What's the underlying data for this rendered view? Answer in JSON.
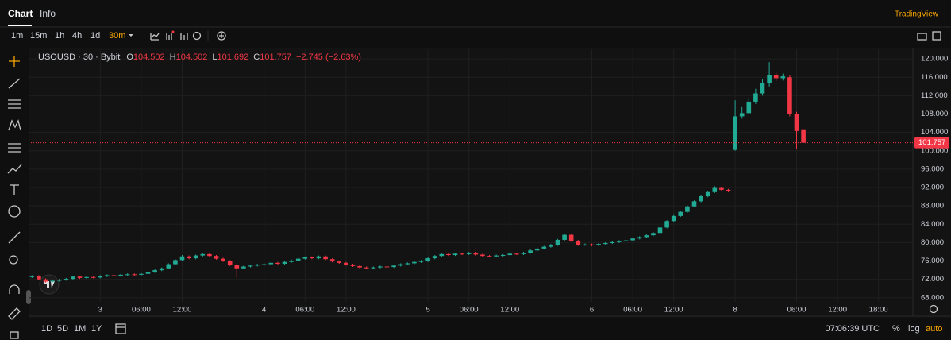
{
  "tabs": [
    "Chart",
    "Info"
  ],
  "brand": "TradingView",
  "intervals": [
    "1m",
    "15m",
    "1h",
    "4h",
    "1d",
    "30m"
  ],
  "ranges": [
    "1D",
    "5D",
    "1M",
    "1Y"
  ],
  "clock": "07:06:39 UTC",
  "scale_buttons": [
    "%",
    "log",
    "auto"
  ],
  "chart_data": {
    "type": "candlestick",
    "symbol": "USOUSD · 30 · Bybit",
    "ohlc_labels": [
      "O",
      "H",
      "L",
      "C"
    ],
    "change": "−2.745 (−2.63%)",
    "up_color": "#22ab94",
    "down_color": "#f23645",
    "grid": true,
    "ylim": [
      67.1,
      122.1
    ],
    "yticks": [
      {
        "value": 68,
        "label": "68.000"
      },
      {
        "value": 72,
        "label": "72.000"
      },
      {
        "value": 76,
        "label": "76.000"
      },
      {
        "value": 80,
        "label": "80.000"
      },
      {
        "value": 84,
        "label": "84.000"
      },
      {
        "value": 88,
        "label": "88.000"
      },
      {
        "value": 92,
        "label": "92.000"
      },
      {
        "value": 96,
        "label": "96.000"
      },
      {
        "value": 100,
        "label": "100.000"
      },
      {
        "value": 104,
        "label": "104.000"
      },
      {
        "value": 108,
        "label": "108.000"
      },
      {
        "value": 112,
        "label": "112.000"
      },
      {
        "value": 116,
        "label": "116.000"
      },
      {
        "value": 120,
        "label": "120.000"
      }
    ],
    "categories": [
      null,
      null,
      null,
      null,
      null,
      null,
      null,
      null,
      null,
      null,
      "3",
      null,
      null,
      null,
      null,
      null,
      "06:00",
      null,
      null,
      null,
      null,
      null,
      "12:00",
      null,
      null,
      null,
      null,
      null,
      null,
      null,
      null,
      null,
      null,
      null,
      "4",
      null,
      null,
      null,
      null,
      null,
      "06:00",
      null,
      null,
      null,
      null,
      null,
      "12:00",
      null,
      null,
      null,
      null,
      null,
      null,
      null,
      null,
      null,
      null,
      null,
      "5",
      null,
      null,
      null,
      null,
      null,
      "06:00",
      null,
      null,
      null,
      null,
      null,
      "12:00",
      null,
      null,
      null,
      null,
      null,
      null,
      null,
      null,
      null,
      null,
      null,
      "6",
      null,
      null,
      null,
      null,
      null,
      "06:00",
      null,
      null,
      null,
      null,
      null,
      "12:00",
      null,
      null,
      null,
      null,
      null,
      null,
      null,
      null,
      "8",
      null,
      null,
      null,
      null,
      null,
      null,
      null,
      null,
      "06:00",
      null,
      null,
      null,
      null,
      null,
      "12:00",
      null,
      null,
      null,
      null,
      null,
      "18:00",
      null,
      null,
      null
    ],
    "open": [
      72.5,
      72.7,
      72.0,
      71.5,
      71.7,
      71.9,
      72.1,
      72.6,
      72.3,
      72.5,
      72.4,
      72.7,
      72.9,
      72.8,
      73.0,
      73.1,
      73.0,
      73.2,
      73.6,
      74.0,
      74.4,
      75.3,
      76.2,
      77.0,
      76.6,
      77.2,
      77.5,
      77.1,
      76.5,
      76.0,
      75.1,
      74.4,
      74.8,
      75.0,
      75.2,
      75.3,
      75.6,
      75.4,
      75.8,
      76.1,
      76.5,
      76.8,
      76.6,
      77.0,
      76.4,
      75.9,
      75.6,
      75.2,
      74.9,
      74.6,
      74.4,
      74.6,
      74.8,
      74.7,
      75.0,
      75.3,
      75.5,
      75.8,
      76.0,
      76.6,
      77.1,
      77.5,
      77.3,
      77.6,
      77.5,
      77.8,
      77.4,
      77.1,
      77.0,
      77.2,
      77.3,
      77.6,
      77.5,
      77.8,
      78.3,
      78.7,
      79.1,
      79.5,
      80.6,
      81.7,
      80.4,
      79.5,
      79.6,
      79.4,
      79.7,
      79.9,
      80.1,
      80.3,
      80.5,
      80.9,
      81.2,
      81.6,
      82.1,
      83.3,
      84.7,
      85.8,
      86.7,
      87.9,
      89.0,
      90.1,
      91.0,
      91.9,
      91.5,
      100.2,
      107.5,
      108.2,
      110.7,
      112.5,
      114.7,
      116.4,
      115.8,
      116.0,
      108.0,
      104.502,
      null,
      null,
      null,
      null,
      null,
      null,
      null,
      null,
      null,
      null,
      null,
      null,
      null,
      null
    ],
    "high": [
      72.9,
      72.9,
      72.2,
      71.9,
      72.1,
      72.3,
      72.8,
      72.8,
      72.7,
      72.7,
      72.9,
      73.1,
      73.1,
      73.2,
      73.3,
      73.3,
      73.4,
      73.8,
      74.2,
      74.6,
      75.5,
      76.4,
      77.3,
      77.2,
      77.4,
      77.8,
      77.7,
      77.3,
      76.7,
      76.2,
      75.3,
      75.0,
      75.2,
      75.4,
      75.5,
      75.8,
      75.8,
      76.0,
      76.3,
      76.7,
      77.0,
      77.0,
      77.2,
      77.2,
      76.6,
      76.1,
      75.8,
      75.4,
      75.1,
      74.8,
      74.8,
      75.0,
      75.0,
      75.2,
      75.5,
      75.7,
      76.0,
      76.2,
      76.8,
      77.3,
      77.7,
      77.7,
      77.8,
      77.8,
      78.0,
      78.0,
      77.6,
      77.3,
      77.4,
      77.5,
      77.8,
      77.8,
      78.0,
      78.5,
      78.9,
      79.3,
      79.7,
      80.8,
      82.0,
      81.9,
      80.6,
      79.8,
      79.8,
      79.9,
      80.1,
      80.3,
      80.5,
      80.7,
      81.1,
      81.4,
      81.8,
      82.3,
      83.5,
      84.9,
      86.0,
      86.9,
      88.1,
      89.2,
      90.3,
      91.2,
      92.3,
      92.1,
      91.7,
      111.0,
      109.5,
      111.5,
      113.5,
      115.5,
      119.3,
      117.0,
      116.8,
      116.5,
      108.5,
      104.502,
      null,
      null,
      null,
      null,
      null,
      null,
      null,
      null,
      null,
      null,
      null,
      null,
      null,
      null
    ],
    "low": [
      72.3,
      71.8,
      71.3,
      71.3,
      71.5,
      71.7,
      71.9,
      72.1,
      72.1,
      72.2,
      72.2,
      72.5,
      72.6,
      72.6,
      72.8,
      72.8,
      72.8,
      73.0,
      73.4,
      73.8,
      74.2,
      75.1,
      76.0,
      76.4,
      76.4,
      77.0,
      76.9,
      76.3,
      75.8,
      74.9,
      72.3,
      74.2,
      74.6,
      74.8,
      75.0,
      75.1,
      75.2,
      75.2,
      75.6,
      75.9,
      76.3,
      76.4,
      76.4,
      76.2,
      75.7,
      75.4,
      75.0,
      74.7,
      74.4,
      74.2,
      74.2,
      74.4,
      74.5,
      74.5,
      74.8,
      75.1,
      75.3,
      75.6,
      75.8,
      76.4,
      76.9,
      77.1,
      77.1,
      77.3,
      77.3,
      77.2,
      76.9,
      76.8,
      76.8,
      77.0,
      77.1,
      77.3,
      77.3,
      77.6,
      78.1,
      78.5,
      78.9,
      79.3,
      80.4,
      80.2,
      79.3,
      79.3,
      79.2,
      79.2,
      79.5,
      79.7,
      79.9,
      80.1,
      80.3,
      80.7,
      81.0,
      81.4,
      81.9,
      83.1,
      84.5,
      85.6,
      86.5,
      87.7,
      88.8,
      89.9,
      90.8,
      91.3,
      91.0,
      100.0,
      107.0,
      108.0,
      110.2,
      112.0,
      114.0,
      115.2,
      115.3,
      107.5,
      100.3,
      101.692,
      null,
      null,
      null,
      null,
      null,
      null,
      null,
      null,
      null,
      null,
      null,
      null,
      null,
      null
    ],
    "close": [
      72.7,
      72.0,
      71.5,
      71.7,
      71.9,
      72.1,
      72.6,
      72.3,
      72.5,
      72.4,
      72.7,
      72.9,
      72.8,
      73.0,
      73.1,
      73.0,
      73.2,
      73.6,
      74.0,
      74.4,
      75.3,
      76.2,
      77.0,
      76.6,
      77.2,
      77.5,
      77.1,
      76.5,
      76.0,
      75.1,
      74.4,
      74.8,
      75.0,
      75.2,
      75.3,
      75.6,
      75.4,
      75.8,
      76.1,
      76.5,
      76.8,
      76.6,
      77.0,
      76.4,
      75.9,
      75.6,
      75.2,
      74.9,
      74.6,
      74.4,
      74.6,
      74.8,
      74.7,
      75.0,
      75.3,
      75.5,
      75.8,
      76.0,
      76.6,
      77.1,
      77.5,
      77.3,
      77.6,
      77.5,
      77.8,
      77.4,
      77.1,
      77.0,
      77.2,
      77.3,
      77.6,
      77.5,
      77.8,
      78.3,
      78.7,
      79.1,
      79.5,
      80.6,
      81.7,
      80.4,
      79.5,
      79.6,
      79.4,
      79.7,
      79.9,
      80.1,
      80.3,
      80.5,
      80.9,
      81.2,
      81.6,
      82.1,
      83.3,
      84.7,
      85.8,
      86.7,
      87.9,
      89.0,
      90.1,
      91.0,
      91.9,
      91.5,
      91.2,
      107.5,
      108.2,
      110.7,
      112.5,
      114.7,
      116.4,
      115.8,
      116.2,
      108.0,
      104.3,
      101.757,
      null,
      null,
      null,
      null,
      null,
      null,
      null,
      null,
      null,
      null,
      null,
      null,
      null,
      null
    ]
  }
}
